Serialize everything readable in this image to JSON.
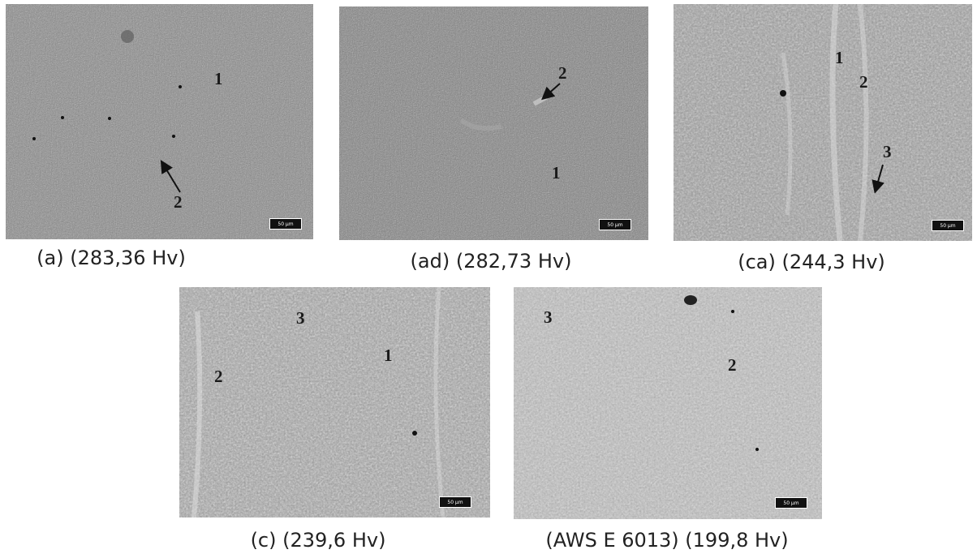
{
  "panels": [
    {
      "id": "a",
      "caption": "(a) (283,36 Hv)",
      "labels": [
        "1",
        "2"
      ],
      "scale": "50 µm"
    },
    {
      "id": "ad",
      "caption": "(ad) (282,73 Hv)",
      "labels": [
        "2",
        "1"
      ],
      "scale": "50 µm"
    },
    {
      "id": "ca",
      "caption": "(ca) (244,3 Hv)",
      "labels": [
        "1",
        "2",
        "3"
      ],
      "scale": "50 µm"
    },
    {
      "id": "c",
      "caption": "(c) (239,6 Hv)",
      "labels": [
        "3",
        "1",
        "2"
      ],
      "scale": "50 µm"
    },
    {
      "id": "aws",
      "caption": "(AWS E 6013) (199,8 Hv)",
      "labels": [
        "3",
        "2"
      ],
      "scale": "50 µm"
    }
  ]
}
